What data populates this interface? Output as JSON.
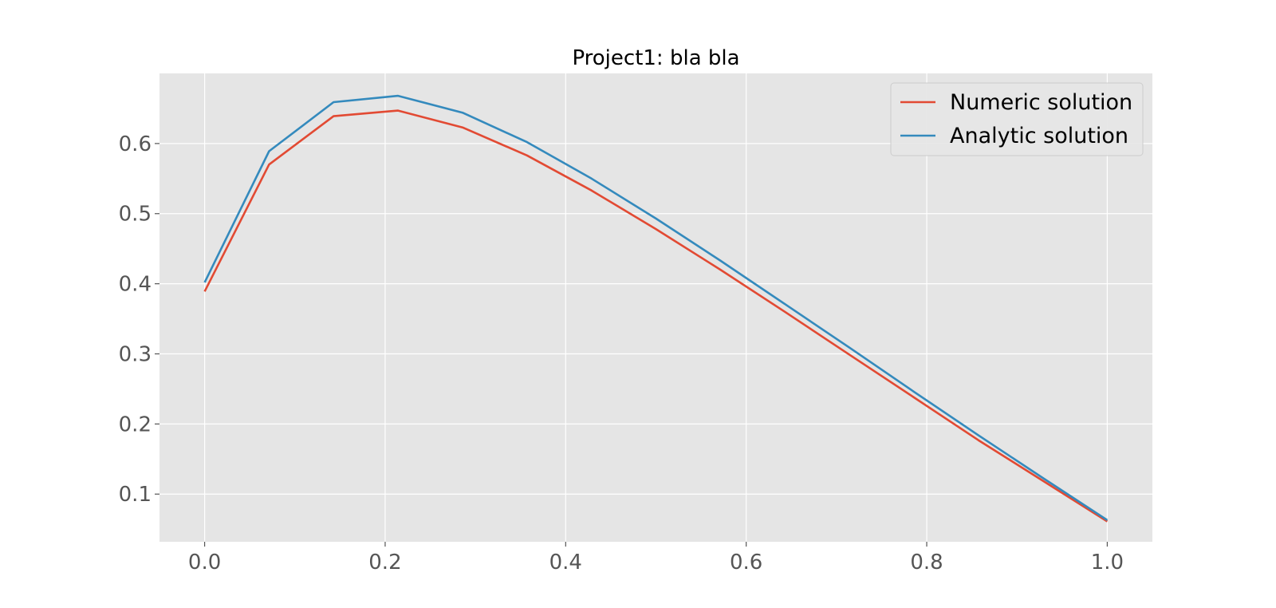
{
  "chart_data": {
    "type": "line",
    "title": "Project1: bla bla",
    "xlabel": "",
    "ylabel": "",
    "xlim": [
      -0.05,
      1.05
    ],
    "ylim": [
      0.032,
      0.7
    ],
    "xticks": [
      0.0,
      0.2,
      0.4,
      0.6,
      0.8,
      1.0
    ],
    "xtick_labels": [
      "0.0",
      "0.2",
      "0.4",
      "0.6",
      "0.8",
      "1.0"
    ],
    "yticks": [
      0.1,
      0.2,
      0.3,
      0.4,
      0.5,
      0.6
    ],
    "ytick_labels": [
      "0.1",
      "0.2",
      "0.3",
      "0.4",
      "0.5",
      "0.6"
    ],
    "grid": true,
    "legend_position": "top-right",
    "x": [
      0.0,
      0.0714,
      0.1429,
      0.2143,
      0.2857,
      0.3571,
      0.4286,
      0.5,
      0.5714,
      0.6429,
      0.7143,
      0.7857,
      0.8571,
      0.9286,
      1.0
    ],
    "series": [
      {
        "name": "Numeric solution",
        "color": "#E24A33",
        "values": [
          0.389,
          0.57,
          0.639,
          0.647,
          0.623,
          0.583,
          0.533,
          0.478,
          0.42,
          0.36,
          0.299,
          0.238,
          0.177,
          0.119,
          0.061
        ]
      },
      {
        "name": "Analytic solution",
        "color": "#348ABD",
        "values": [
          0.402,
          0.589,
          0.659,
          0.668,
          0.644,
          0.602,
          0.55,
          0.493,
          0.433,
          0.371,
          0.309,
          0.246,
          0.184,
          0.123,
          0.063
        ]
      }
    ],
    "background_color": "#E5E5E5",
    "grid_color": "#FFFFFF"
  }
}
